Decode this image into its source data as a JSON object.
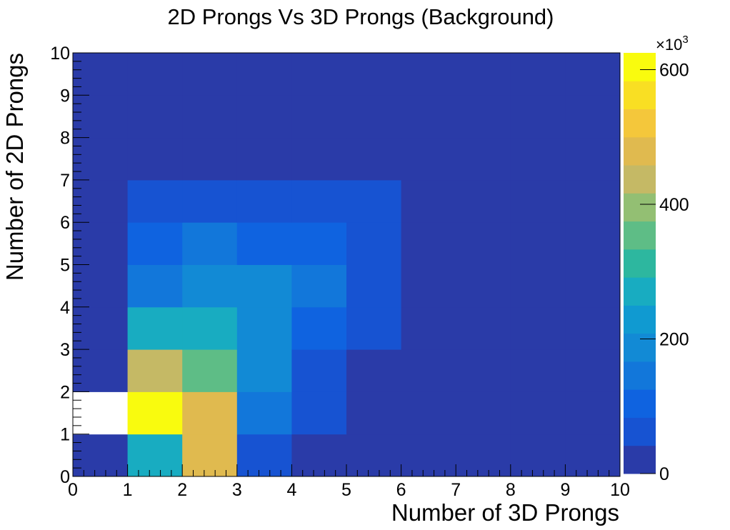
{
  "chart_data": {
    "type": "heatmap",
    "title": "2D Prongs Vs 3D Prongs (Background)",
    "xlabel": "Number of 3D Prongs",
    "ylabel": "Number of 2D Prongs",
    "xlim": [
      0,
      10
    ],
    "ylim": [
      0,
      10
    ],
    "x_ticks": [
      "0",
      "1",
      "2",
      "3",
      "4",
      "5",
      "6",
      "7",
      "8",
      "9",
      "10"
    ],
    "y_ticks": [
      "0",
      "1",
      "2",
      "3",
      "4",
      "5",
      "6",
      "7",
      "8",
      "9",
      "10"
    ],
    "z_range": [
      0,
      625
    ],
    "z_multiplier_label": "×10",
    "z_multiplier_exponent": "3",
    "z_ticks": [
      {
        "value": 0,
        "label": "0"
      },
      {
        "value": 200,
        "label": "200"
      },
      {
        "value": 400,
        "label": "400"
      },
      {
        "value": 600,
        "label": "600"
      }
    ],
    "colorscale": [
      "#2a3ba8",
      "#1753d2",
      "#0f63e0",
      "#1277da",
      "#128ad5",
      "#109ad1",
      "#18acc1",
      "#2db79f",
      "#5ebd86",
      "#93bf73",
      "#c5b965",
      "#e0ba4f",
      "#f4c73b",
      "#f9df23",
      "#f9fb0e"
    ],
    "grid": false,
    "legend": "colorbar-right",
    "cells_note_rows_are_y_bins_0_to_9_columns_are_x_bins_0_to_9": "",
    "z": [
      [
        0,
        270,
        490,
        70,
        10,
        5,
        0,
        0,
        0,
        0
      ],
      [
        null,
        625,
        490,
        140,
        45,
        10,
        0,
        0,
        0,
        0
      ],
      [
        10,
        455,
        360,
        175,
        75,
        40,
        5,
        0,
        0,
        0
      ],
      [
        10,
        285,
        285,
        175,
        110,
        45,
        5,
        0,
        0,
        0
      ],
      [
        5,
        140,
        190,
        175,
        125,
        70,
        5,
        0,
        0,
        0
      ],
      [
        5,
        85,
        130,
        110,
        110,
        45,
        5,
        0,
        0,
        0
      ],
      [
        5,
        45,
        70,
        70,
        70,
        45,
        5,
        0,
        0,
        0
      ],
      [
        0,
        5,
        40,
        40,
        40,
        5,
        0,
        0,
        0,
        0
      ],
      [
        0,
        0,
        0,
        30,
        0,
        0,
        0,
        0,
        0,
        0
      ],
      [
        0,
        0,
        0,
        0,
        0,
        0,
        0,
        0,
        0,
        0
      ]
    ]
  }
}
